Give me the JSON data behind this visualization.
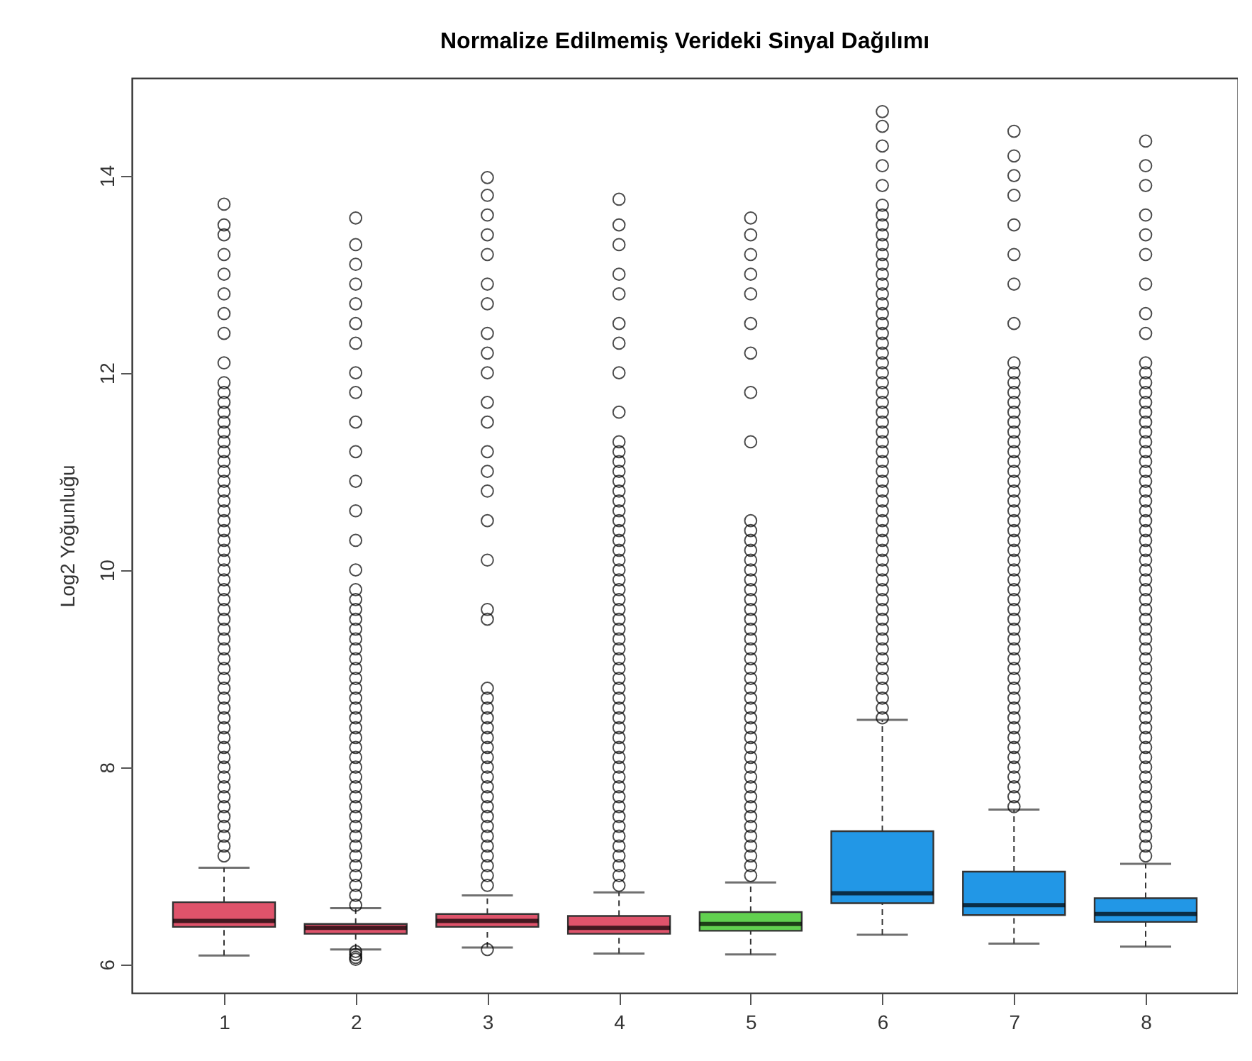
{
  "chart_data": {
    "type": "box",
    "title": "Normalize Edilmemiş Verideki Sinyal Dağılımı",
    "ylabel": "Log2 Yoğunluğu",
    "categories": [
      "1",
      "2",
      "3",
      "4",
      "5",
      "6",
      "7",
      "8"
    ],
    "colors": [
      "#df536b",
      "#df536b",
      "#df536b",
      "#df536b",
      "#61d04f",
      "#2297e6",
      "#2297e6",
      "#2297e6"
    ],
    "ylim": [
      5.71,
      14.99
    ],
    "yticks": [
      6,
      8,
      10,
      12,
      14
    ],
    "grid": false,
    "marker": "circle",
    "boxes": [
      {
        "low": 6.09,
        "q1": 6.38,
        "median": 6.44,
        "q3": 6.63,
        "high": 6.98,
        "outliers": [
          7.1,
          7.2,
          7.3,
          7.4,
          7.5,
          7.6,
          7.7,
          7.8,
          7.9,
          8.0,
          8.1,
          8.2,
          8.3,
          8.4,
          8.5,
          8.6,
          8.7,
          8.8,
          8.9,
          9.0,
          9.1,
          9.2,
          9.3,
          9.4,
          9.5,
          9.6,
          9.7,
          9.8,
          9.9,
          10.0,
          10.1,
          10.2,
          10.3,
          10.4,
          10.5,
          10.6,
          10.7,
          10.8,
          10.9,
          11.0,
          11.1,
          11.2,
          11.3,
          11.4,
          11.5,
          11.6,
          11.7,
          11.8,
          11.9,
          12.1,
          12.4,
          12.6,
          12.8,
          13.0,
          13.2,
          13.4,
          13.5,
          13.71
        ]
      },
      {
        "low": 6.15,
        "q1": 6.31,
        "median": 6.37,
        "q3": 6.41,
        "high": 6.57,
        "outliers": [
          6.13,
          6.1,
          6.07,
          6.05,
          6.6,
          6.7,
          6.8,
          6.9,
          7.0,
          7.1,
          7.2,
          7.3,
          7.4,
          7.5,
          7.6,
          7.7,
          7.8,
          7.9,
          8.0,
          8.1,
          8.2,
          8.3,
          8.4,
          8.5,
          8.6,
          8.7,
          8.8,
          8.9,
          9.0,
          9.1,
          9.2,
          9.3,
          9.4,
          9.5,
          9.6,
          9.7,
          9.8,
          10.0,
          10.3,
          10.6,
          10.9,
          11.2,
          11.5,
          11.8,
          12.0,
          12.3,
          12.5,
          12.7,
          12.9,
          13.1,
          13.3,
          13.57
        ]
      },
      {
        "low": 6.17,
        "q1": 6.38,
        "median": 6.44,
        "q3": 6.51,
        "high": 6.7,
        "outliers": [
          6.15,
          6.8,
          6.9,
          7.0,
          7.1,
          7.2,
          7.3,
          7.4,
          7.5,
          7.6,
          7.7,
          7.8,
          7.9,
          8.0,
          8.1,
          8.2,
          8.3,
          8.4,
          8.5,
          8.6,
          8.7,
          8.8,
          9.5,
          9.6,
          10.1,
          10.5,
          10.8,
          11.0,
          11.2,
          11.5,
          11.7,
          12.0,
          12.2,
          12.4,
          12.7,
          12.9,
          13.2,
          13.4,
          13.6,
          13.8,
          13.98
        ]
      },
      {
        "low": 6.11,
        "q1": 6.31,
        "median": 6.37,
        "q3": 6.49,
        "high": 6.73,
        "outliers": [
          6.8,
          6.9,
          7.0,
          7.1,
          7.2,
          7.3,
          7.4,
          7.5,
          7.6,
          7.7,
          7.8,
          7.9,
          8.0,
          8.1,
          8.2,
          8.3,
          8.4,
          8.5,
          8.6,
          8.7,
          8.8,
          8.9,
          9.0,
          9.1,
          9.2,
          9.3,
          9.4,
          9.5,
          9.6,
          9.7,
          9.8,
          9.9,
          10.0,
          10.1,
          10.2,
          10.3,
          10.4,
          10.5,
          10.6,
          10.7,
          10.8,
          10.9,
          11.0,
          11.1,
          11.2,
          11.3,
          11.6,
          12.0,
          12.3,
          12.5,
          12.8,
          13.0,
          13.3,
          13.5,
          13.76
        ]
      },
      {
        "low": 6.1,
        "q1": 6.34,
        "median": 6.41,
        "q3": 6.53,
        "high": 6.83,
        "outliers": [
          6.9,
          7.0,
          7.1,
          7.2,
          7.3,
          7.4,
          7.5,
          7.6,
          7.7,
          7.8,
          7.9,
          8.0,
          8.1,
          8.2,
          8.3,
          8.4,
          8.5,
          8.6,
          8.7,
          8.8,
          8.9,
          9.0,
          9.1,
          9.2,
          9.3,
          9.4,
          9.5,
          9.6,
          9.7,
          9.8,
          9.9,
          10.0,
          10.1,
          10.2,
          10.3,
          10.4,
          10.5,
          11.3,
          11.8,
          12.2,
          12.5,
          12.8,
          13.0,
          13.2,
          13.4,
          13.57
        ]
      },
      {
        "low": 6.3,
        "q1": 6.62,
        "median": 6.72,
        "q3": 7.35,
        "high": 8.48,
        "outliers": [
          8.5,
          8.6,
          8.7,
          8.8,
          8.9,
          9.0,
          9.1,
          9.2,
          9.3,
          9.4,
          9.5,
          9.6,
          9.7,
          9.8,
          9.9,
          10.0,
          10.1,
          10.2,
          10.3,
          10.4,
          10.5,
          10.6,
          10.7,
          10.8,
          10.9,
          11.0,
          11.1,
          11.2,
          11.3,
          11.4,
          11.5,
          11.6,
          11.7,
          11.8,
          11.9,
          12.0,
          12.1,
          12.2,
          12.3,
          12.4,
          12.5,
          12.6,
          12.7,
          12.8,
          12.9,
          13.0,
          13.1,
          13.2,
          13.3,
          13.4,
          13.5,
          13.6,
          13.7,
          13.9,
          14.1,
          14.3,
          14.5,
          14.65
        ]
      },
      {
        "low": 6.21,
        "q1": 6.5,
        "median": 6.6,
        "q3": 6.94,
        "high": 7.57,
        "outliers": [
          7.6,
          7.7,
          7.8,
          7.9,
          8.0,
          8.1,
          8.2,
          8.3,
          8.4,
          8.5,
          8.6,
          8.7,
          8.8,
          8.9,
          9.0,
          9.1,
          9.2,
          9.3,
          9.4,
          9.5,
          9.6,
          9.7,
          9.8,
          9.9,
          10.0,
          10.1,
          10.2,
          10.3,
          10.4,
          10.5,
          10.6,
          10.7,
          10.8,
          10.9,
          11.0,
          11.1,
          11.2,
          11.3,
          11.4,
          11.5,
          11.6,
          11.7,
          11.8,
          11.9,
          12.0,
          12.1,
          12.5,
          12.9,
          13.2,
          13.5,
          13.8,
          14.0,
          14.2,
          14.45
        ]
      },
      {
        "low": 6.18,
        "q1": 6.43,
        "median": 6.51,
        "q3": 6.67,
        "high": 7.02,
        "outliers": [
          7.1,
          7.2,
          7.3,
          7.4,
          7.5,
          7.6,
          7.7,
          7.8,
          7.9,
          8.0,
          8.1,
          8.2,
          8.3,
          8.4,
          8.5,
          8.6,
          8.7,
          8.8,
          8.9,
          9.0,
          9.1,
          9.2,
          9.3,
          9.4,
          9.5,
          9.6,
          9.7,
          9.8,
          9.9,
          10.0,
          10.1,
          10.2,
          10.3,
          10.4,
          10.5,
          10.6,
          10.7,
          10.8,
          10.9,
          11.0,
          11.1,
          11.2,
          11.3,
          11.4,
          11.5,
          11.6,
          11.7,
          11.8,
          11.9,
          12.0,
          12.1,
          12.4,
          12.6,
          12.9,
          13.2,
          13.4,
          13.6,
          13.9,
          14.1,
          14.35
        ]
      }
    ]
  }
}
